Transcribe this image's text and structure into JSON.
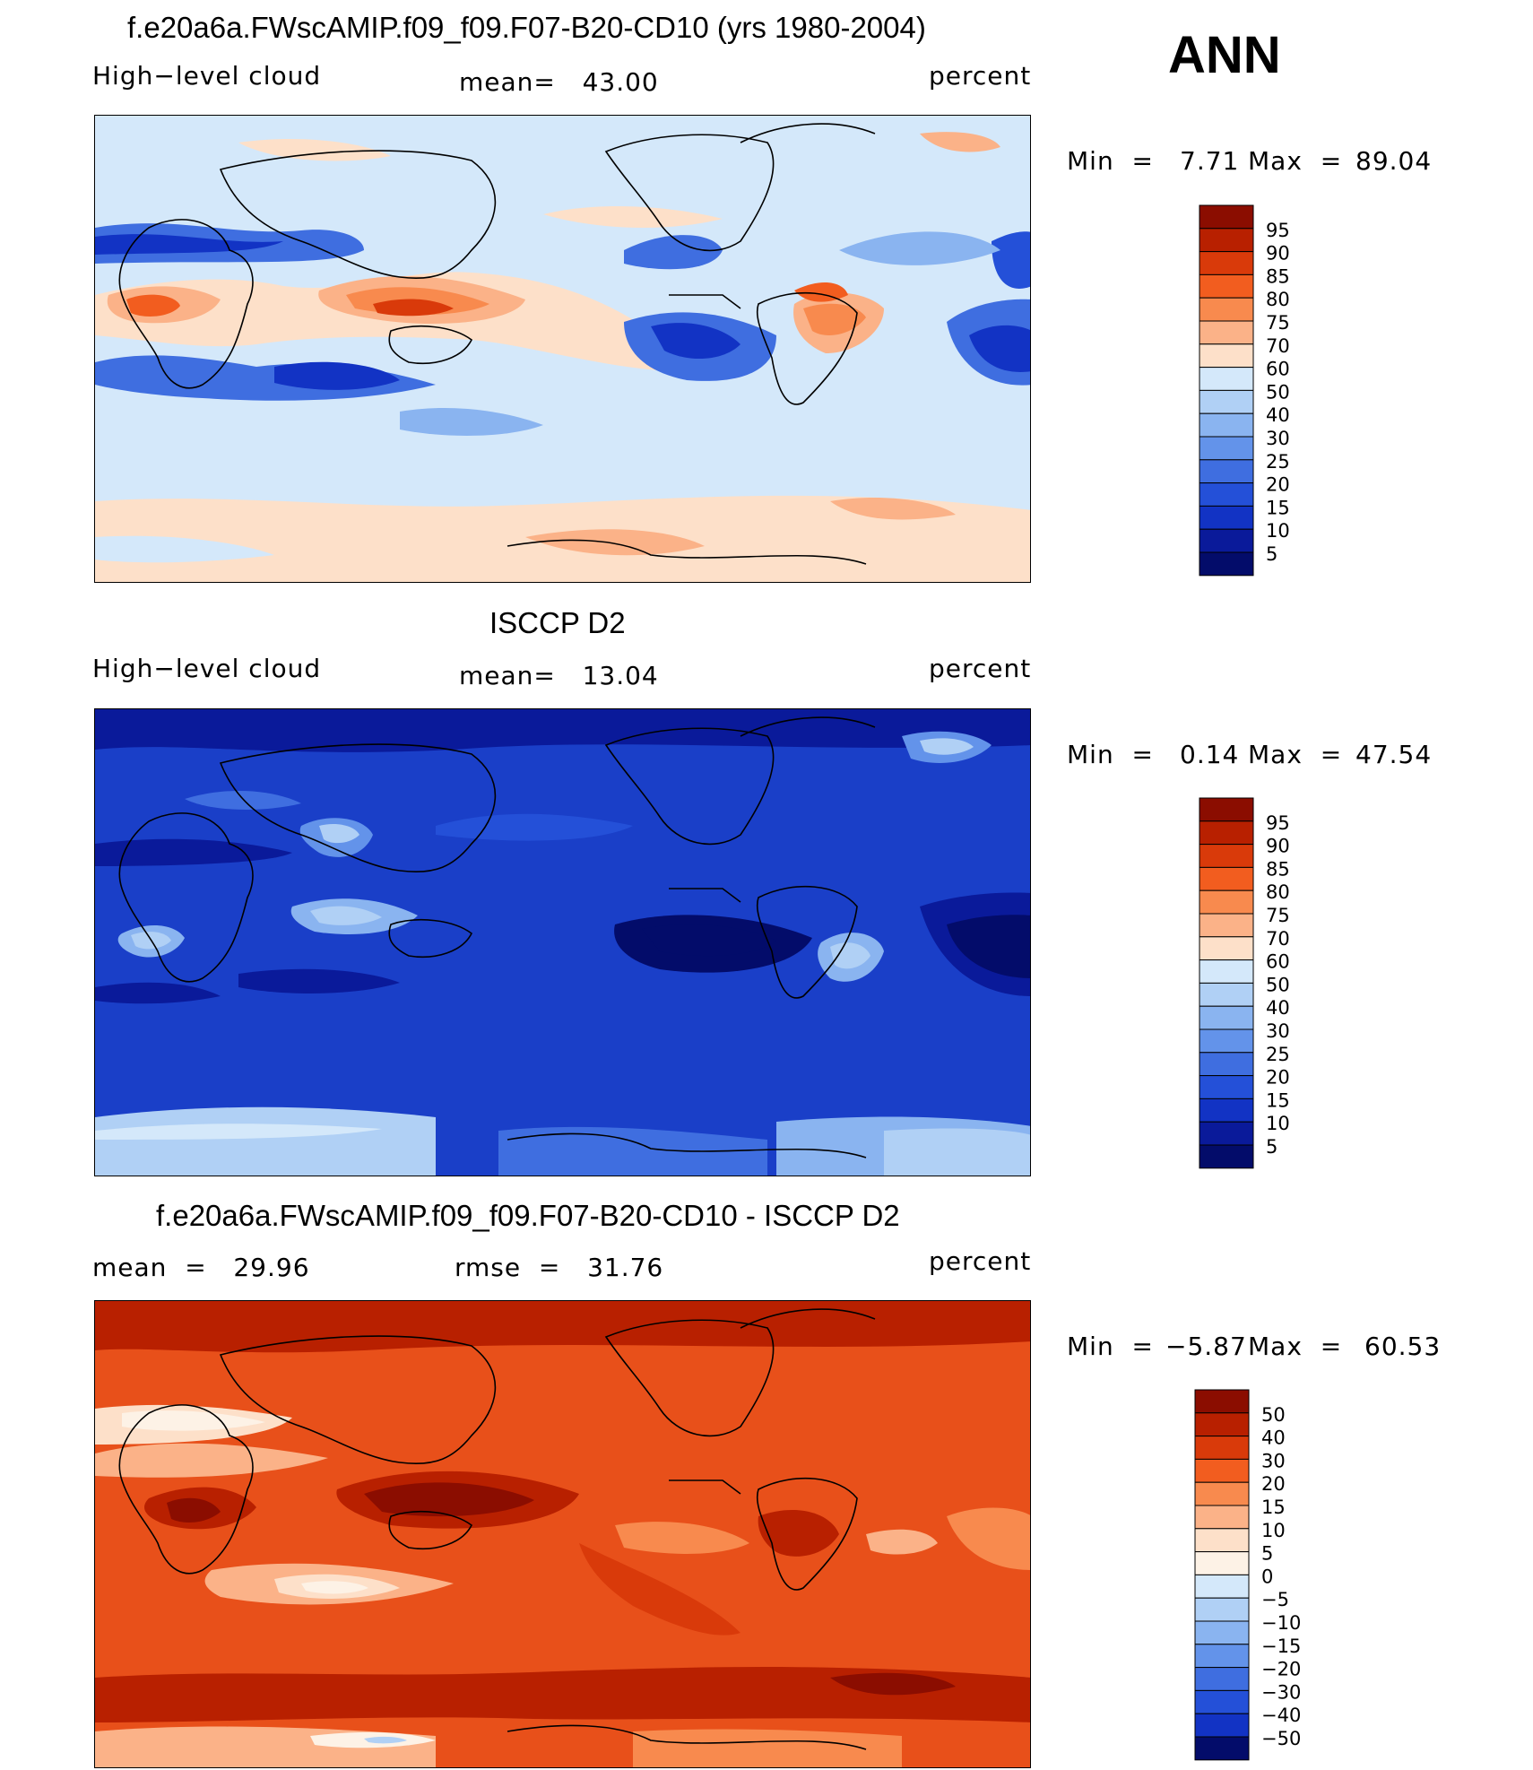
{
  "season": "ANN",
  "panels": [
    {
      "title": "f.e20a6a.FWscAMIP.f09_f09.F07-B20-CD10 (yrs 1980-2004)",
      "left_label": "High−level cloud",
      "stat1": "mean=   43.00",
      "stat2": "",
      "units": "percent",
      "min_label": "Min  =",
      "min_value": "7.71",
      "max_label": "Max  =",
      "max_value": "89.04",
      "levels": [
        "95",
        "90",
        "85",
        "80",
        "75",
        "70",
        "60",
        "50",
        "40",
        "30",
        "25",
        "20",
        "15",
        "10",
        "5"
      ],
      "colors": [
        "#8b0d00",
        "#b82000",
        "#d93a0a",
        "#f25d1f",
        "#f88a4e",
        "#fbb288",
        "#fde0c9",
        "#d4e8fa",
        "#b0d0f5",
        "#8ab4f0",
        "#6393ea",
        "#3f6ee0",
        "#2450d8",
        "#1233c4",
        "#0a1a9a",
        "#030c6a"
      ],
      "bg": "#d4e8fa"
    },
    {
      "title": "ISCCP D2",
      "left_label": "High−level cloud",
      "stat1": "mean=   13.04",
      "stat2": "",
      "units": "percent",
      "min_label": "Min  =",
      "min_value": "0.14",
      "max_label": "Max  =",
      "max_value": "47.54",
      "levels": [
        "95",
        "90",
        "85",
        "80",
        "75",
        "70",
        "60",
        "50",
        "40",
        "30",
        "25",
        "20",
        "15",
        "10",
        "5"
      ],
      "colors": [
        "#8b0d00",
        "#b82000",
        "#d93a0a",
        "#f25d1f",
        "#f88a4e",
        "#fbb288",
        "#fde0c9",
        "#d4e8fa",
        "#b0d0f5",
        "#8ab4f0",
        "#6393ea",
        "#3f6ee0",
        "#2450d8",
        "#1233c4",
        "#0a1a9a",
        "#030c6a"
      ],
      "bg": "#1a3fc8"
    },
    {
      "title": "f.e20a6a.FWscAMIP.f09_f09.F07-B20-CD10 - ISCCP D2",
      "left_label": "mean  =   29.96",
      "stat1": "rmse  =   31.76",
      "stat2": "",
      "units": "percent",
      "min_label": "Min  =",
      "min_value": "−5.87",
      "max_label": "Max  =",
      "max_value": "60.53",
      "levels": [
        "50",
        "40",
        "30",
        "20",
        "15",
        "10",
        "5",
        "0",
        "−5",
        "−10",
        "−15",
        "−20",
        "−30",
        "−40",
        "−50"
      ],
      "colors": [
        "#8b0d00",
        "#b82000",
        "#d93a0a",
        "#f25d1f",
        "#f88a4e",
        "#fbb288",
        "#fde0c9",
        "#fdf2e6",
        "#d4e8fa",
        "#b0d0f5",
        "#8ab4f0",
        "#6393ea",
        "#3f6ee0",
        "#2450d8",
        "#1233c4",
        "#030c6a"
      ],
      "bg": "#e8501a"
    }
  ],
  "chart_data": [
    {
      "type": "heatmap",
      "title": "f.e20a6a.FWscAMIP.f09_f09.F07-B20-CD10 (yrs 1980-2004)",
      "variable": "High−level cloud",
      "units": "percent",
      "mean": 43.0,
      "min": 7.71,
      "max": 89.04,
      "contour_levels": [
        5,
        10,
        15,
        20,
        25,
        30,
        40,
        50,
        60,
        70,
        75,
        80,
        85,
        90,
        95
      ],
      "season": "ANN"
    },
    {
      "type": "heatmap",
      "title": "ISCCP D2",
      "variable": "High−level cloud",
      "units": "percent",
      "mean": 13.04,
      "min": 0.14,
      "max": 47.54,
      "contour_levels": [
        5,
        10,
        15,
        20,
        25,
        30,
        40,
        50,
        60,
        70,
        75,
        80,
        85,
        90,
        95
      ],
      "season": "ANN"
    },
    {
      "type": "heatmap",
      "title": "f.e20a6a.FWscAMIP.f09_f09.F07-B20-CD10 - ISCCP D2",
      "units": "percent",
      "mean": 29.96,
      "rmse": 31.76,
      "min": -5.87,
      "max": 60.53,
      "contour_levels": [
        -50,
        -40,
        -30,
        -20,
        -15,
        -10,
        -5,
        0,
        5,
        10,
        15,
        20,
        30,
        40,
        50
      ],
      "season": "ANN"
    }
  ]
}
